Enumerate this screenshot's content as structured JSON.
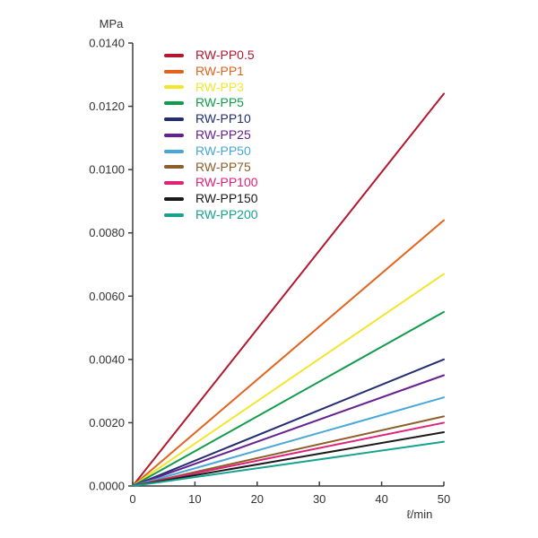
{
  "page": {
    "background": "#ffffff",
    "axis_color": "#3d3d3d",
    "text_color": "#323232"
  },
  "chart_data": {
    "type": "line",
    "title": "",
    "ylabel": "MPa",
    "xlabel": "ℓ/min",
    "xlim": [
      0,
      50
    ],
    "ylim": [
      0,
      0.014
    ],
    "x_ticks": [
      "0",
      "10",
      "20",
      "30",
      "40",
      "50"
    ],
    "y_ticks": [
      "0.0000",
      "0.0020",
      "0.0040",
      "0.0060",
      "0.0080",
      "0.0100",
      "0.0120",
      "0.0140"
    ],
    "grid": false,
    "legend_position": "top-left-inside",
    "x": [
      0,
      50
    ],
    "series": [
      {
        "name": "RW-PP0.5",
        "color": "#b2182f",
        "values": [
          0,
          0.0124
        ]
      },
      {
        "name": "RW-PP1",
        "color": "#e2631d",
        "values": [
          0,
          0.0084
        ]
      },
      {
        "name": "RW-PP3",
        "color": "#f3e52c",
        "values": [
          0,
          0.0067
        ]
      },
      {
        "name": "RW-PP5",
        "color": "#119c4b",
        "values": [
          0,
          0.0055
        ]
      },
      {
        "name": "RW-PP10",
        "color": "#232d72",
        "values": [
          0,
          0.004
        ]
      },
      {
        "name": "RW-PP25",
        "color": "#66208f",
        "values": [
          0,
          0.0035
        ]
      },
      {
        "name": "RW-PP50",
        "color": "#48a7d8",
        "values": [
          0,
          0.0028
        ]
      },
      {
        "name": "RW-PP75",
        "color": "#8c5e29",
        "values": [
          0,
          0.0022
        ]
      },
      {
        "name": "RW-PP100",
        "color": "#e02179",
        "values": [
          0,
          0.002
        ]
      },
      {
        "name": "RW-PP150",
        "color": "#1a1a1a",
        "values": [
          0,
          0.0017
        ]
      },
      {
        "name": "RW-PP200",
        "color": "#17a290",
        "values": [
          0,
          0.0014
        ]
      }
    ]
  }
}
